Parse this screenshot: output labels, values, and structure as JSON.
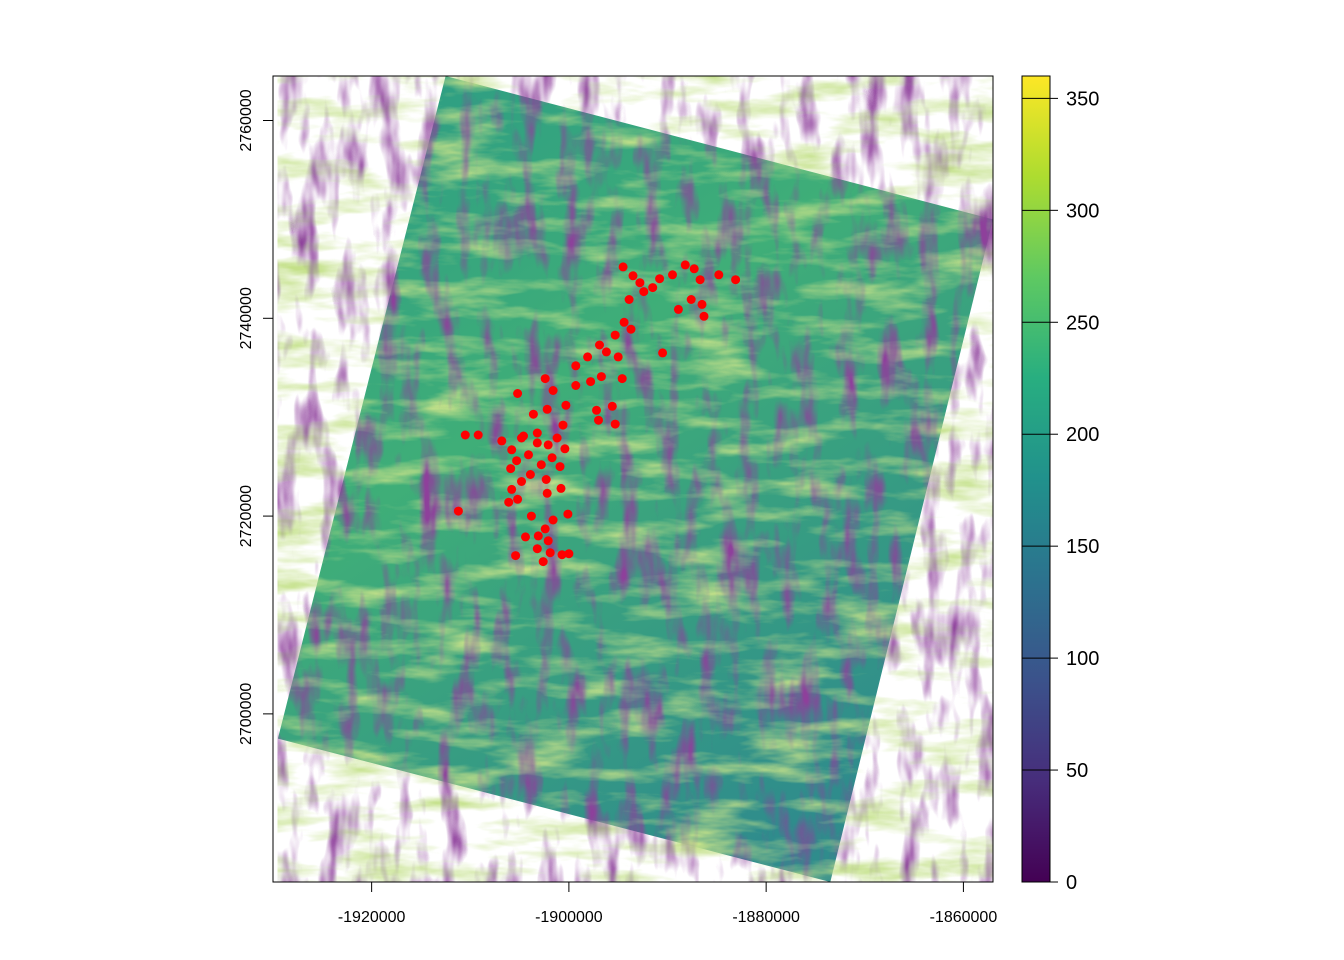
{
  "map": {
    "type": "raster",
    "raster_layer": "aspect",
    "x_axis": {
      "range": [
        -1930000,
        -1857000
      ],
      "ticks": [
        -1920000,
        -1900000,
        -1880000,
        -1860000
      ],
      "tick_labels": [
        "-1920000",
        "-1900000",
        "-1880000",
        "-1860000"
      ]
    },
    "y_axis": {
      "range": [
        2683000,
        2764500
      ],
      "ticks": [
        2700000,
        2720000,
        2740000,
        2760000
      ],
      "tick_labels": [
        "2700000",
        "2720000",
        "2740000",
        "2760000"
      ]
    },
    "raster_corners": [
      [
        -1912500,
        2764500
      ],
      [
        -1857000,
        2750000
      ],
      [
        -1873500,
        2683000
      ],
      [
        -1929500,
        2697500
      ]
    ],
    "colorbar": {
      "range": [
        0,
        360
      ],
      "ticks": [
        0,
        50,
        100,
        150,
        200,
        250,
        300,
        350
      ],
      "tick_labels": [
        "0",
        "50",
        "100",
        "150",
        "200",
        "250",
        "300",
        "350"
      ],
      "palette": [
        "#440154",
        "#472d7b",
        "#3b528b",
        "#2c728e",
        "#21918c",
        "#28ae80",
        "#5ec962",
        "#addc30",
        "#fde725"
      ]
    },
    "points_color": "#ff0000",
    "points": [
      [
        -1894500,
        2745200
      ],
      [
        -1893500,
        2744300
      ],
      [
        -1892800,
        2743600
      ],
      [
        -1891500,
        2743100
      ],
      [
        -1890800,
        2744000
      ],
      [
        -1889500,
        2744400
      ],
      [
        -1888200,
        2745400
      ],
      [
        -1887300,
        2745000
      ],
      [
        -1886700,
        2743900
      ],
      [
        -1887600,
        2741900
      ],
      [
        -1888900,
        2740900
      ],
      [
        -1886500,
        2741400
      ],
      [
        -1886300,
        2740200
      ],
      [
        -1884800,
        2744400
      ],
      [
        -1883100,
        2743900
      ],
      [
        -1892400,
        2742700
      ],
      [
        -1893900,
        2741900
      ],
      [
        -1894400,
        2739600
      ],
      [
        -1893700,
        2738900
      ],
      [
        -1895300,
        2738300
      ],
      [
        -1896200,
        2736600
      ],
      [
        -1895000,
        2736100
      ],
      [
        -1899300,
        2735200
      ],
      [
        -1898100,
        2736100
      ],
      [
        -1890500,
        2736500
      ],
      [
        -1896700,
        2734100
      ],
      [
        -1897800,
        2733600
      ],
      [
        -1899300,
        2733200
      ],
      [
        -1901600,
        2732700
      ],
      [
        -1902400,
        2733900
      ],
      [
        -1905200,
        2732400
      ],
      [
        -1900300,
        2731200
      ],
      [
        -1902200,
        2730800
      ],
      [
        -1903600,
        2730300
      ],
      [
        -1897200,
        2730700
      ],
      [
        -1895600,
        2731100
      ],
      [
        -1895300,
        2729300
      ],
      [
        -1897000,
        2729700
      ],
      [
        -1900600,
        2729200
      ],
      [
        -1903200,
        2728400
      ],
      [
        -1904800,
        2727900
      ],
      [
        -1902100,
        2727200
      ],
      [
        -1903200,
        2727400
      ],
      [
        -1901200,
        2727900
      ],
      [
        -1900400,
        2726800
      ],
      [
        -1905800,
        2726700
      ],
      [
        -1904100,
        2726200
      ],
      [
        -1905300,
        2725600
      ],
      [
        -1905900,
        2724800
      ],
      [
        -1903900,
        2724200
      ],
      [
        -1902800,
        2725200
      ],
      [
        -1901700,
        2725900
      ],
      [
        -1900900,
        2725000
      ],
      [
        -1902300,
        2723700
      ],
      [
        -1904800,
        2723500
      ],
      [
        -1905800,
        2722700
      ],
      [
        -1906100,
        2721400
      ],
      [
        -1905200,
        2721700
      ],
      [
        -1902200,
        2722300
      ],
      [
        -1900800,
        2722800
      ],
      [
        -1900100,
        2720200
      ],
      [
        -1901600,
        2719600
      ],
      [
        -1903800,
        2720000
      ],
      [
        -1902400,
        2718700
      ],
      [
        -1903100,
        2718000
      ],
      [
        -1902100,
        2717500
      ],
      [
        -1903200,
        2716700
      ],
      [
        -1901900,
        2716300
      ],
      [
        -1900700,
        2716100
      ],
      [
        -1900000,
        2716200
      ],
      [
        -1902600,
        2715400
      ],
      [
        -1904400,
        2717900
      ],
      [
        -1905400,
        2716000
      ],
      [
        -1910500,
        2728200
      ],
      [
        -1909200,
        2728200
      ],
      [
        -1911200,
        2720500
      ],
      [
        -1904600,
        2728100
      ],
      [
        -1906800,
        2727600
      ],
      [
        -1896900,
        2737300
      ],
      [
        -1894600,
        2733900
      ]
    ]
  }
}
